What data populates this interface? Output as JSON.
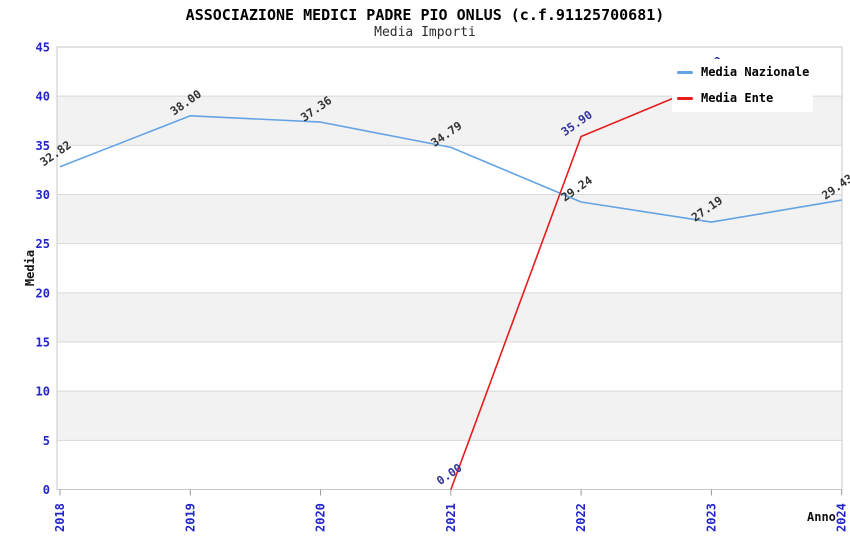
{
  "chart_data": {
    "type": "line",
    "title": "ASSOCIAZIONE MEDICI PADRE PIO ONLUS (c.f.91125700681)",
    "subtitle": "Media Importi",
    "xlabel": "Anno",
    "ylabel": "Media",
    "ylim": [
      0,
      45
    ],
    "y_tick_step": 5,
    "x_ticks": [
      2018,
      2019,
      2020,
      2021,
      2022,
      2023,
      2024
    ],
    "grid": "horizontal",
    "alternating_band_color": "#f2f2f2",
    "legend_position": "top-right",
    "series": [
      {
        "name": "Media Nazionale",
        "color": "#64a3e4",
        "label_color": "#333333",
        "x": [
          2018,
          2019,
          2020,
          2021,
          2022,
          2023,
          2024
        ],
        "values": [
          32.82,
          38.0,
          37.36,
          34.79,
          29.24,
          27.19,
          29.43
        ]
      },
      {
        "name": "Media Ente",
        "color": "#e81c1c",
        "label_color": "#333399",
        "x": [
          2021,
          2022,
          2023
        ],
        "values": [
          0.0,
          35.9,
          41.4
        ]
      }
    ],
    "axis_tick_label_color": "#2323cd",
    "grid_color": "#d9d9d9",
    "border_color": "#c9c9c9"
  }
}
